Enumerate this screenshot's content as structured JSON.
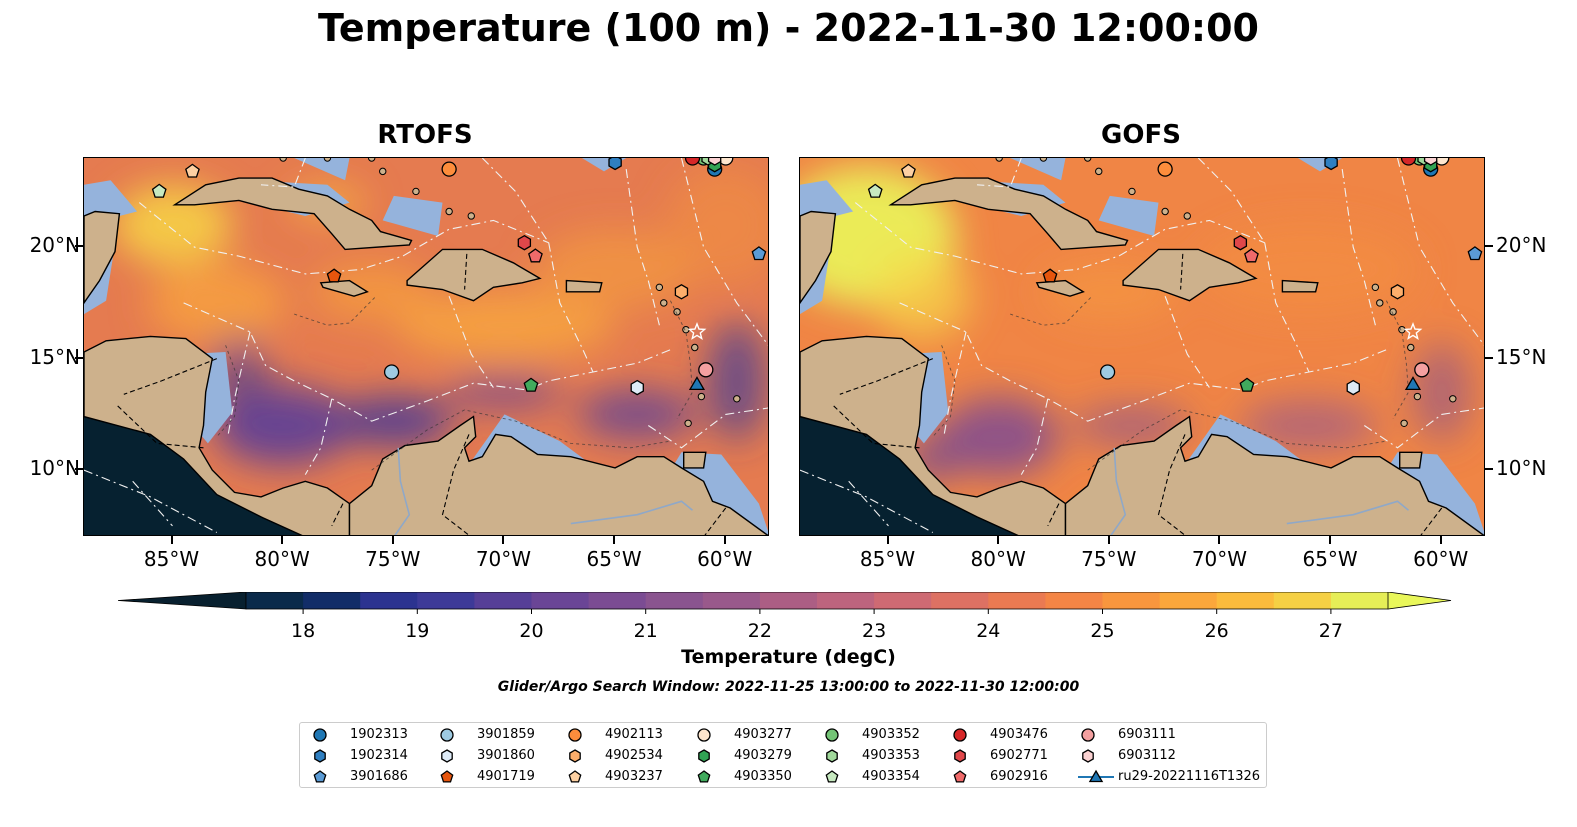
{
  "title": "Temperature (100 m) - 2022-11-30 12:00:00",
  "panels": [
    {
      "id": "rtofs",
      "title": "RTOFS"
    },
    {
      "id": "gofs",
      "title": "GOFS"
    }
  ],
  "axes": {
    "lon_labels": [
      "85°W",
      "80°W",
      "75°W",
      "70°W",
      "65°W",
      "60°W"
    ],
    "lat_labels": [
      "20°N",
      "15°N",
      "10°N"
    ],
    "lon_range": [
      -89,
      -58
    ],
    "lat_range": [
      7,
      24
    ]
  },
  "colorbar": {
    "label": "Temperature (degC)",
    "min": 17.5,
    "max": 27.5,
    "ticks": [
      "18",
      "19",
      "20",
      "21",
      "22",
      "23",
      "24",
      "25",
      "26",
      "27"
    ],
    "colors": [
      "#0a2a4a",
      "#122d68",
      "#2c3390",
      "#3d3a98",
      "#563f97",
      "#6a4596",
      "#7b4c93",
      "#8a548f",
      "#99598b",
      "#ac5e84",
      "#bd647e",
      "#ce6a73",
      "#dd7163",
      "#ea7a52",
      "#f48545",
      "#f8963e",
      "#fba73b",
      "#fbbb3c",
      "#f5d044",
      "#e6ee57"
    ],
    "under_color": "#08202f",
    "over_color": "#e9f75a"
  },
  "window_note": "Glider/Argo Search Window: 2022-11-25 13:00:00 to 2022-11-30 12:00:00",
  "colors": {
    "land": "#cdb18c",
    "shelf": "#95b3dc",
    "pacific": "#062130",
    "rtofs_ocean": "#e57b50",
    "gofs_ocean": "#f08545"
  },
  "platforms": [
    {
      "id": "1902313",
      "marker": "circle",
      "color": "#1f77b4",
      "lon": -60.5,
      "lat": 23.5
    },
    {
      "id": "1902314",
      "marker": "hexagon",
      "color": "#2f7fc1",
      "lon": -65.0,
      "lat": 23.8
    },
    {
      "id": "3901686",
      "marker": "pentagon",
      "color": "#5b9bd5",
      "lon": -58.5,
      "lat": 19.7
    },
    {
      "id": "3901859",
      "marker": "circle",
      "color": "#9ecae1",
      "lon": -75.1,
      "lat": 14.4
    },
    {
      "id": "3901860",
      "marker": "hexagon",
      "color": "#deebf7",
      "lon": -64.0,
      "lat": 13.7
    },
    {
      "id": "4901719",
      "marker": "pentagon",
      "color": "#e6550d",
      "lon": -77.7,
      "lat": 18.7
    },
    {
      "id": "4902113",
      "marker": "circle",
      "color": "#fd8d3c",
      "lon": -72.5,
      "lat": 23.5
    },
    {
      "id": "4902534",
      "marker": "hexagon",
      "color": "#fdae6b",
      "lon": -62.0,
      "lat": 18.0
    },
    {
      "id": "4903237",
      "marker": "pentagon",
      "color": "#fdd0a2",
      "lon": -84.1,
      "lat": 23.4
    },
    {
      "id": "4903277",
      "marker": "circle",
      "color": "#fee6ce",
      "lon": -60.0,
      "lat": 24.0
    },
    {
      "id": "4903279",
      "marker": "hexagon",
      "color": "#31a354",
      "lon": -60.5,
      "lat": 23.7
    },
    {
      "id": "4903350",
      "marker": "pentagon",
      "color": "#41ab5d",
      "lon": -68.8,
      "lat": 13.8
    },
    {
      "id": "4903352",
      "marker": "circle",
      "color": "#74c476",
      "lon": -61.0,
      "lat": 24.0
    },
    {
      "id": "4903353",
      "marker": "hexagon",
      "color": "#a1d99b",
      "lon": -60.8,
      "lat": 24.0
    },
    {
      "id": "4903354",
      "marker": "pentagon",
      "color": "#c7e9c0",
      "lon": -85.6,
      "lat": 22.5
    },
    {
      "id": "4903476",
      "marker": "circle",
      "color": "#d62728",
      "lon": -61.5,
      "lat": 24.0
    },
    {
      "id": "6902771",
      "marker": "hexagon",
      "color": "#e0474a",
      "lon": -69.1,
      "lat": 20.2
    },
    {
      "id": "6902916",
      "marker": "pentagon",
      "color": "#f06a6a",
      "lon": -68.6,
      "lat": 19.6
    },
    {
      "id": "6903111",
      "marker": "circle",
      "color": "#f4a0a0",
      "lon": -60.9,
      "lat": 14.5
    },
    {
      "id": "6903112",
      "marker": "hexagon",
      "color": "#fbd2d2",
      "lon": -60.5,
      "lat": 24.0
    },
    {
      "id": "ru29-20221116T1326",
      "marker": "triangle",
      "color": "#1f77b4",
      "lon": -61.3,
      "lat": 13.8
    }
  ],
  "legend_layout_rows": 3
}
